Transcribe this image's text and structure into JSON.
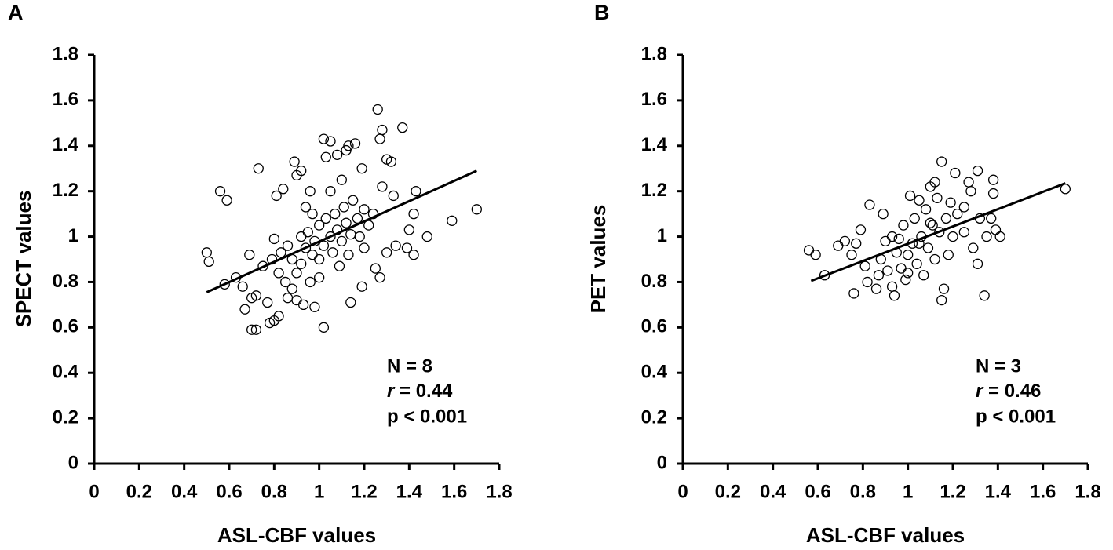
{
  "chart_data": [
    {
      "type": "scatter",
      "panel_label": "A",
      "xlabel": "ASL-CBF values",
      "ylabel": "SPECT values",
      "xlim": [
        0,
        1.8
      ],
      "ylim": [
        0,
        1.8
      ],
      "xticks": [
        0,
        0.2,
        0.4,
        0.6,
        0.8,
        1,
        1.2,
        1.4,
        1.6,
        1.8
      ],
      "yticks": [
        0,
        0.2,
        0.4,
        0.6,
        0.8,
        1,
        1.2,
        1.4,
        1.6,
        1.8
      ],
      "annotations": [
        "N = 8",
        "r = 0.44",
        "p < 0.001"
      ],
      "trendline": {
        "x": [
          0.5,
          1.7
        ],
        "y": [
          0.755,
          1.29
        ]
      },
      "x": [
        0.5,
        0.51,
        0.56,
        0.59,
        0.58,
        0.63,
        0.66,
        0.67,
        0.69,
        0.7,
        0.72,
        0.7,
        0.72,
        0.73,
        0.75,
        0.77,
        0.78,
        0.8,
        0.82,
        0.8,
        0.81,
        0.84,
        0.89,
        0.92,
        0.9,
        0.94,
        0.96,
        1.02,
        1.03,
        1.05,
        1.08,
        1.12,
        1.13,
        1.16,
        1.19,
        1.26,
        1.28,
        1.27,
        1.3,
        1.32,
        1.37,
        1.28,
        1.33,
        1.43,
        1.42,
        1.59,
        1.7,
        1.48,
        1.4,
        1.39,
        1.42,
        1.34,
        1.3,
        1.25,
        1.27,
        1.19,
        1.14,
        1.02,
        0.98,
        0.93,
        0.9,
        0.86,
        0.88,
        0.85,
        0.82,
        0.79,
        0.83,
        0.86,
        0.88,
        0.9,
        0.92,
        0.94,
        0.95,
        0.97,
        0.98,
        1.0,
        1.0,
        1.02,
        1.03,
        1.05,
        1.06,
        1.07,
        1.08,
        1.1,
        1.11,
        1.12,
        1.14,
        1.15,
        1.17,
        1.18,
        1.2,
        1.22,
        1.24,
        1.05,
        1.0,
        0.96,
        0.92,
        0.97,
        1.09,
        1.13,
        1.2,
        1.1
      ],
      "y": [
        0.93,
        0.89,
        1.2,
        1.16,
        0.79,
        0.82,
        0.78,
        0.68,
        0.92,
        0.73,
        0.59,
        0.59,
        0.74,
        1.3,
        0.87,
        0.71,
        0.62,
        0.63,
        0.65,
        0.99,
        1.18,
        1.21,
        1.33,
        1.29,
        1.27,
        1.13,
        1.2,
        1.43,
        1.35,
        1.42,
        1.36,
        1.38,
        1.4,
        1.41,
        1.3,
        1.56,
        1.47,
        1.43,
        1.34,
        1.33,
        1.48,
        1.22,
        1.18,
        1.2,
        1.1,
        1.07,
        1.12,
        1.0,
        1.03,
        0.95,
        0.92,
        0.96,
        0.93,
        0.86,
        0.82,
        0.78,
        0.71,
        0.6,
        0.69,
        0.7,
        0.72,
        0.73,
        0.77,
        0.8,
        0.84,
        0.9,
        0.93,
        0.96,
        0.9,
        0.84,
        0.88,
        0.95,
        1.02,
        0.92,
        0.98,
        1.05,
        0.9,
        0.96,
        1.08,
        1.0,
        0.93,
        1.1,
        1.03,
        0.98,
        1.13,
        1.06,
        1.01,
        1.16,
        1.08,
        1.0,
        1.12,
        1.05,
        1.1,
        1.2,
        0.82,
        0.8,
        1.0,
        1.1,
        0.87,
        0.92,
        0.95,
        1.25
      ]
    },
    {
      "type": "scatter",
      "panel_label": "B",
      "xlabel": "ASL-CBF values",
      "ylabel": "PET values",
      "xlim": [
        0,
        1.8
      ],
      "ylim": [
        0,
        1.8
      ],
      "xticks": [
        0,
        0.2,
        0.4,
        0.6,
        0.8,
        1,
        1.2,
        1.4,
        1.6,
        1.8
      ],
      "yticks": [
        0,
        0.2,
        0.4,
        0.6,
        0.8,
        1,
        1.2,
        1.4,
        1.6,
        1.8
      ],
      "annotations": [
        "N = 3",
        "r = 0.46",
        "p < 0.001"
      ],
      "trendline": {
        "x": [
          0.57,
          1.7
        ],
        "y": [
          0.805,
          1.235
        ]
      },
      "x": [
        0.56,
        0.59,
        0.63,
        0.69,
        0.72,
        0.75,
        0.77,
        0.76,
        0.79,
        0.81,
        0.82,
        0.83,
        0.86,
        0.87,
        0.88,
        0.89,
        0.9,
        0.91,
        0.93,
        0.94,
        0.95,
        0.96,
        0.97,
        0.98,
        0.99,
        1.0,
        1.01,
        1.02,
        1.03,
        1.04,
        1.05,
        1.06,
        1.07,
        1.08,
        1.09,
        1.1,
        1.11,
        1.12,
        1.13,
        1.14,
        1.15,
        1.15,
        1.16,
        1.17,
        1.18,
        1.19,
        1.2,
        1.21,
        1.22,
        1.25,
        1.27,
        1.28,
        1.29,
        1.31,
        1.31,
        1.32,
        1.34,
        1.35,
        1.38,
        1.38,
        1.37,
        1.39,
        1.41,
        1.7,
        1.25,
        1.12,
        0.93,
        1.0,
        1.05,
        1.1
      ],
      "y": [
        0.94,
        0.92,
        0.83,
        0.96,
        0.98,
        0.92,
        0.97,
        0.75,
        1.03,
        0.87,
        0.8,
        1.14,
        0.77,
        0.83,
        0.9,
        1.1,
        0.98,
        0.85,
        0.78,
        0.74,
        0.93,
        0.99,
        0.86,
        1.05,
        0.81,
        0.92,
        1.18,
        0.97,
        1.08,
        0.88,
        1.16,
        1.0,
        0.83,
        1.12,
        0.95,
        1.22,
        1.05,
        0.9,
        1.17,
        1.02,
        1.33,
        0.72,
        0.77,
        1.08,
        0.92,
        1.15,
        1.0,
        1.28,
        1.1,
        1.02,
        1.24,
        1.2,
        0.95,
        1.29,
        0.88,
        1.08,
        0.74,
        1.0,
        1.25,
        1.19,
        1.08,
        1.03,
        1.0,
        1.21,
        1.13,
        1.24,
        1.0,
        0.84,
        0.97,
        1.06
      ]
    }
  ]
}
